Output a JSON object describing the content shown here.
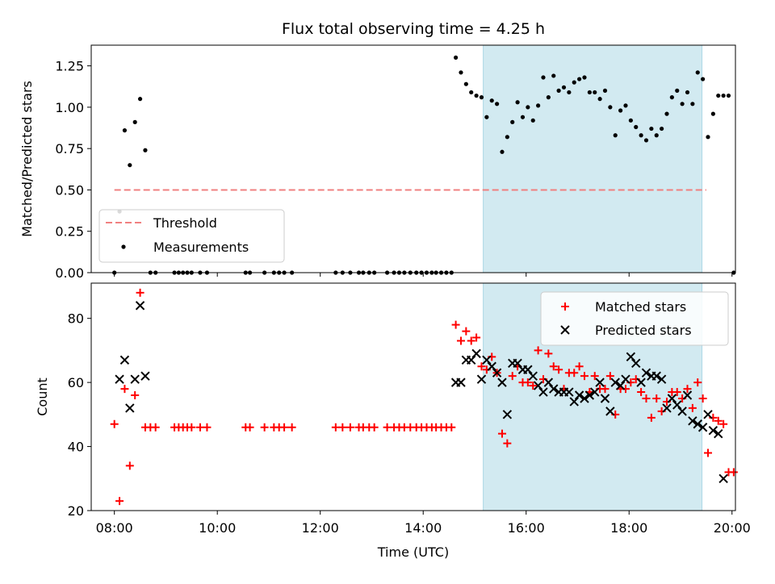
{
  "chart_data": [
    {
      "type": "scatter",
      "title": "Flux total observing time = 4.25 h",
      "ylabel": "Matched/Predicted stars",
      "xlabel": "",
      "ylim": [
        0,
        1.375
      ],
      "xlim": [
        "07:33",
        "20:04"
      ],
      "yticks": [
        0,
        0.25,
        0.5,
        0.75,
        1.0,
        1.25
      ],
      "ytick_labels": [
        "0.00",
        "0.25",
        "0.50",
        "0.75",
        "1.00",
        "1.25"
      ],
      "shaded_region": {
        "from": "15:10",
        "to": "19:25",
        "color": "#add8e6"
      },
      "legend_position": "lower-left",
      "series": [
        {
          "name": "Threshold",
          "style": "dashed-line",
          "color": "#f08080",
          "points": [
            [
              "08:00",
              0.5
            ],
            [
              "19:30",
              0.5
            ]
          ]
        },
        {
          "name": "Measurements",
          "style": "dot",
          "color": "#000000",
          "points": [
            [
              "08:00",
              0.0
            ],
            [
              "08:06",
              0.37
            ],
            [
              "08:12",
              0.86
            ],
            [
              "08:18",
              0.65
            ],
            [
              "08:24",
              0.91
            ],
            [
              "08:30",
              1.05
            ],
            [
              "08:36",
              0.74
            ],
            [
              "08:42",
              0.0
            ],
            [
              "08:48",
              0.0
            ],
            [
              "09:10",
              0.0
            ],
            [
              "09:15",
              0.0
            ],
            [
              "09:20",
              0.0
            ],
            [
              "09:25",
              0.0
            ],
            [
              "09:30",
              0.0
            ],
            [
              "09:40",
              0.0
            ],
            [
              "09:48",
              0.0
            ],
            [
              "10:33",
              0.0
            ],
            [
              "10:38",
              0.0
            ],
            [
              "10:55",
              0.0
            ],
            [
              "11:06",
              0.0
            ],
            [
              "11:12",
              0.0
            ],
            [
              "11:18",
              0.0
            ],
            [
              "11:27",
              0.0
            ],
            [
              "12:18",
              0.0
            ],
            [
              "12:26",
              0.0
            ],
            [
              "12:35",
              0.0
            ],
            [
              "12:45",
              0.0
            ],
            [
              "12:50",
              0.0
            ],
            [
              "12:57",
              0.0
            ],
            [
              "13:03",
              0.0
            ],
            [
              "13:18",
              0.0
            ],
            [
              "13:26",
              0.0
            ],
            [
              "13:32",
              0.0
            ],
            [
              "13:38",
              0.0
            ],
            [
              "13:45",
              0.0
            ],
            [
              "13:52",
              0.0
            ],
            [
              "13:58",
              0.0
            ],
            [
              "14:04",
              0.0
            ],
            [
              "14:10",
              0.0
            ],
            [
              "14:15",
              0.0
            ],
            [
              "14:21",
              0.0
            ],
            [
              "14:27",
              0.0
            ],
            [
              "14:33",
              0.0
            ],
            [
              "14:38",
              1.3
            ],
            [
              "14:44",
              1.21
            ],
            [
              "14:50",
              1.14
            ],
            [
              "14:56",
              1.09
            ],
            [
              "15:02",
              1.07
            ],
            [
              "15:08",
              1.06
            ],
            [
              "15:14",
              0.94
            ],
            [
              "15:20",
              1.04
            ],
            [
              "15:26",
              1.02
            ],
            [
              "15:32",
              0.73
            ],
            [
              "15:38",
              0.82
            ],
            [
              "15:44",
              0.91
            ],
            [
              "15:50",
              1.03
            ],
            [
              "15:56",
              0.94
            ],
            [
              "16:02",
              1.0
            ],
            [
              "16:08",
              0.92
            ],
            [
              "16:14",
              1.01
            ],
            [
              "16:20",
              1.18
            ],
            [
              "16:26",
              1.06
            ],
            [
              "16:32",
              1.19
            ],
            [
              "16:38",
              1.1
            ],
            [
              "16:44",
              1.12
            ],
            [
              "16:50",
              1.09
            ],
            [
              "16:56",
              1.15
            ],
            [
              "17:02",
              1.17
            ],
            [
              "17:08",
              1.18
            ],
            [
              "17:14",
              1.09
            ],
            [
              "17:20",
              1.09
            ],
            [
              "17:26",
              1.05
            ],
            [
              "17:32",
              1.1
            ],
            [
              "17:38",
              1.0
            ],
            [
              "17:44",
              0.83
            ],
            [
              "17:50",
              0.98
            ],
            [
              "17:56",
              1.01
            ],
            [
              "18:02",
              0.92
            ],
            [
              "18:08",
              0.88
            ],
            [
              "18:14",
              0.83
            ],
            [
              "18:20",
              0.8
            ],
            [
              "18:26",
              0.87
            ],
            [
              "18:32",
              0.83
            ],
            [
              "18:38",
              0.87
            ],
            [
              "18:44",
              0.96
            ],
            [
              "18:50",
              1.06
            ],
            [
              "18:56",
              1.1
            ],
            [
              "19:02",
              1.02
            ],
            [
              "19:08",
              1.09
            ],
            [
              "19:14",
              1.02
            ],
            [
              "19:20",
              1.21
            ],
            [
              "19:26",
              1.17
            ],
            [
              "19:32",
              0.82
            ],
            [
              "19:38",
              0.96
            ],
            [
              "19:44",
              1.07
            ],
            [
              "19:50",
              1.07
            ],
            [
              "19:56",
              1.07
            ],
            [
              "20:02",
              0.0
            ]
          ]
        }
      ]
    },
    {
      "type": "scatter",
      "title": "",
      "ylabel": "Count",
      "xlabel": "Time (UTC)",
      "ylim": [
        20,
        91
      ],
      "xlim": [
        "07:33",
        "20:04"
      ],
      "yticks": [
        20,
        40,
        60,
        80
      ],
      "xticks": [
        "08:00",
        "10:00",
        "12:00",
        "14:00",
        "16:00",
        "18:00",
        "20:00"
      ],
      "shaded_region": {
        "from": "15:10",
        "to": "19:25",
        "color": "#add8e6"
      },
      "legend_position": "top-right",
      "series": [
        {
          "name": "Matched stars",
          "marker": "plus",
          "color": "#ff0000",
          "points": [
            [
              "08:00",
              47
            ],
            [
              "08:06",
              23
            ],
            [
              "08:12",
              58
            ],
            [
              "08:18",
              34
            ],
            [
              "08:24",
              56
            ],
            [
              "08:30",
              88
            ],
            [
              "08:36",
              46
            ],
            [
              "08:42",
              46
            ],
            [
              "08:48",
              46
            ],
            [
              "09:10",
              46
            ],
            [
              "09:15",
              46
            ],
            [
              "09:20",
              46
            ],
            [
              "09:25",
              46
            ],
            [
              "09:30",
              46
            ],
            [
              "09:40",
              46
            ],
            [
              "09:48",
              46
            ],
            [
              "10:33",
              46
            ],
            [
              "10:38",
              46
            ],
            [
              "10:55",
              46
            ],
            [
              "11:06",
              46
            ],
            [
              "11:12",
              46
            ],
            [
              "11:18",
              46
            ],
            [
              "11:27",
              46
            ],
            [
              "12:18",
              46
            ],
            [
              "12:26",
              46
            ],
            [
              "12:35",
              46
            ],
            [
              "12:45",
              46
            ],
            [
              "12:50",
              46
            ],
            [
              "12:57",
              46
            ],
            [
              "13:03",
              46
            ],
            [
              "13:18",
              46
            ],
            [
              "13:26",
              46
            ],
            [
              "13:32",
              46
            ],
            [
              "13:38",
              46
            ],
            [
              "13:45",
              46
            ],
            [
              "13:52",
              46
            ],
            [
              "13:58",
              46
            ],
            [
              "14:04",
              46
            ],
            [
              "14:10",
              46
            ],
            [
              "14:15",
              46
            ],
            [
              "14:21",
              46
            ],
            [
              "14:27",
              46
            ],
            [
              "14:33",
              46
            ],
            [
              "14:38",
              78
            ],
            [
              "14:44",
              73
            ],
            [
              "14:50",
              76
            ],
            [
              "14:56",
              73
            ],
            [
              "15:02",
              74
            ],
            [
              "15:08",
              65
            ],
            [
              "15:14",
              64
            ],
            [
              "15:20",
              68
            ],
            [
              "15:26",
              63
            ],
            [
              "15:32",
              44
            ],
            [
              "15:38",
              41
            ],
            [
              "15:44",
              62
            ],
            [
              "15:50",
              65
            ],
            [
              "15:56",
              60
            ],
            [
              "16:02",
              60
            ],
            [
              "16:08",
              59
            ],
            [
              "16:14",
              70
            ],
            [
              "16:20",
              61
            ],
            [
              "16:26",
              69
            ],
            [
              "16:32",
              65
            ],
            [
              "16:38",
              64
            ],
            [
              "16:44",
              58
            ],
            [
              "16:50",
              63
            ],
            [
              "16:56",
              63
            ],
            [
              "17:02",
              65
            ],
            [
              "17:08",
              62
            ],
            [
              "17:14",
              57
            ],
            [
              "17:20",
              62
            ],
            [
              "17:26",
              58
            ],
            [
              "17:32",
              58
            ],
            [
              "17:38",
              62
            ],
            [
              "17:44",
              50
            ],
            [
              "17:50",
              58
            ],
            [
              "17:56",
              58
            ],
            [
              "18:02",
              60
            ],
            [
              "18:08",
              61
            ],
            [
              "18:14",
              57
            ],
            [
              "18:20",
              55
            ],
            [
              "18:26",
              49
            ],
            [
              "18:32",
              55
            ],
            [
              "18:38",
              51
            ],
            [
              "18:44",
              54
            ],
            [
              "18:50",
              57
            ],
            [
              "18:56",
              57
            ],
            [
              "19:02",
              55
            ],
            [
              "19:08",
              58
            ],
            [
              "19:14",
              52
            ],
            [
              "19:20",
              60
            ],
            [
              "19:26",
              55
            ],
            [
              "19:32",
              38
            ],
            [
              "19:38",
              49
            ],
            [
              "19:44",
              48
            ],
            [
              "19:50",
              47
            ],
            [
              "19:56",
              32
            ],
            [
              "20:02",
              32
            ]
          ]
        },
        {
          "name": "Predicted stars",
          "marker": "cross",
          "color": "#000000",
          "points": [
            [
              "08:06",
              61
            ],
            [
              "08:12",
              67
            ],
            [
              "08:18",
              52
            ],
            [
              "08:24",
              61
            ],
            [
              "08:30",
              84
            ],
            [
              "08:36",
              62
            ],
            [
              "14:38",
              60
            ],
            [
              "14:44",
              60
            ],
            [
              "14:50",
              67
            ],
            [
              "14:56",
              67
            ],
            [
              "15:02",
              69
            ],
            [
              "15:08",
              61
            ],
            [
              "15:14",
              67
            ],
            [
              "15:20",
              65
            ],
            [
              "15:26",
              63
            ],
            [
              "15:32",
              60
            ],
            [
              "15:38",
              50
            ],
            [
              "15:44",
              66
            ],
            [
              "15:50",
              66
            ],
            [
              "15:56",
              64
            ],
            [
              "16:02",
              64
            ],
            [
              "16:08",
              62
            ],
            [
              "16:14",
              59
            ],
            [
              "16:20",
              57
            ],
            [
              "16:26",
              60
            ],
            [
              "16:32",
              58
            ],
            [
              "16:38",
              57
            ],
            [
              "16:44",
              57
            ],
            [
              "16:50",
              57
            ],
            [
              "16:56",
              54
            ],
            [
              "17:02",
              56
            ],
            [
              "17:08",
              55
            ],
            [
              "17:14",
              56
            ],
            [
              "17:20",
              57
            ],
            [
              "17:26",
              60
            ],
            [
              "17:32",
              55
            ],
            [
              "17:38",
              51
            ],
            [
              "17:44",
              60
            ],
            [
              "17:50",
              59
            ],
            [
              "17:56",
              61
            ],
            [
              "18:02",
              68
            ],
            [
              "18:08",
              66
            ],
            [
              "18:14",
              60
            ],
            [
              "18:20",
              63
            ],
            [
              "18:26",
              62
            ],
            [
              "18:32",
              62
            ],
            [
              "18:38",
              61
            ],
            [
              "18:44",
              52
            ],
            [
              "18:50",
              55
            ],
            [
              "18:56",
              53
            ],
            [
              "19:02",
              51
            ],
            [
              "19:08",
              56
            ],
            [
              "19:14",
              48
            ],
            [
              "19:20",
              47
            ],
            [
              "19:26",
              46
            ],
            [
              "19:32",
              50
            ],
            [
              "19:38",
              45
            ],
            [
              "19:44",
              44
            ],
            [
              "19:50",
              30
            ]
          ]
        }
      ]
    }
  ]
}
